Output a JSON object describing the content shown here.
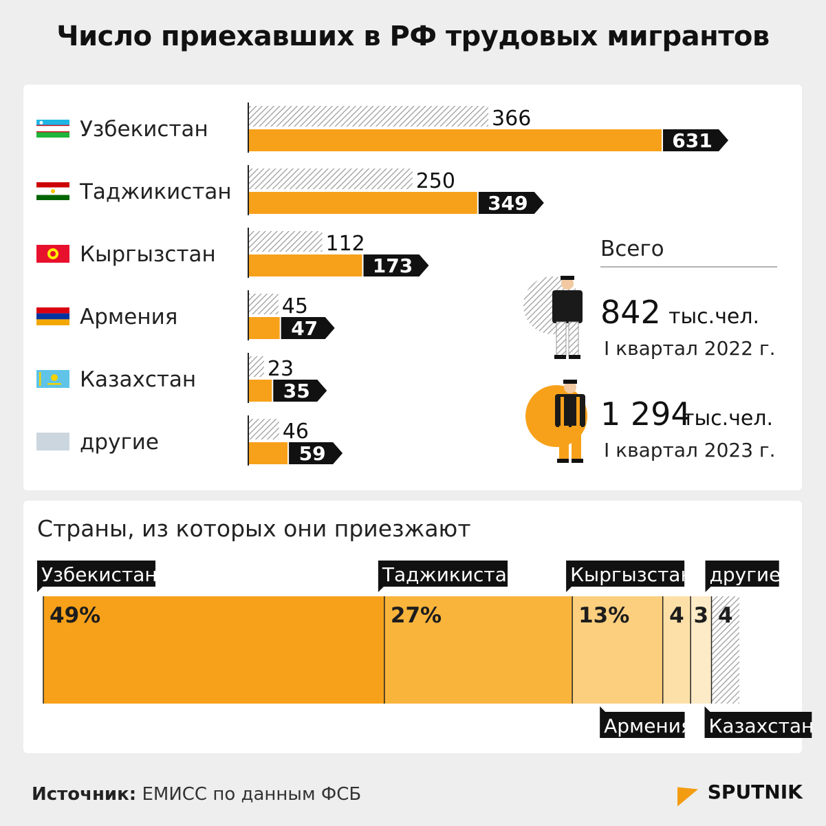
{
  "title": "Число приехавших в РФ трудовых мигрантов",
  "chart_data": [
    {
      "type": "bar",
      "orientation": "horizontal",
      "categories": [
        "Узбекистан",
        "Таджикистан",
        "Кыргызстан",
        "Армения",
        "Казахстан",
        "другие"
      ],
      "series": [
        {
          "values": [
            366,
            250,
            112,
            45,
            23,
            46
          ],
          "color": "#aaaaaa",
          "style": "hatched"
        },
        {
          "values": [
            631,
            349,
            173,
            47,
            35,
            59
          ],
          "color": "#f7a11a",
          "style": "solid"
        }
      ],
      "flags": [
        "uzbekistan-flag-icon",
        "tajikistan-flag-icon",
        "kyrgyzstan-flag-icon",
        "armenia-flag-icon",
        "kazakhstan-flag-icon",
        "others-placeholder-icon"
      ],
      "totals": {
        "label": "Всего",
        "items": [
          {
            "value": "842",
            "unit": "тыс.чел.",
            "period": "I квартал 2022 г.",
            "icon": "migrant-worker-gray-icon"
          },
          {
            "value": "1 294",
            "unit": "тыс.чел.",
            "period": "I квартал 2023 г.",
            "icon": "migrant-worker-orange-icon"
          }
        ]
      }
    },
    {
      "type": "bar",
      "orientation": "stacked-100",
      "title": "Страны, из которых они приезжают",
      "segments": [
        {
          "name": "Узбекистан",
          "value": 49,
          "label": "49%",
          "color": "#f7a11a"
        },
        {
          "name": "Таджикистан",
          "value": 27,
          "label": "27%",
          "color": "#f9b43c"
        },
        {
          "name": "Кыргызстан",
          "value": 13,
          "label": "13%",
          "color": "#fbcf7e"
        },
        {
          "name": "Армения",
          "value": 4,
          "label": "4",
          "color": "#fde0a8"
        },
        {
          "name": "Казахстан",
          "value": 3,
          "label": "3",
          "color": "#fdebc7"
        },
        {
          "name": "другие",
          "value": 4,
          "label": "4",
          "color": "#aaaaaa",
          "style": "hatched"
        }
      ]
    }
  ],
  "footer": {
    "source_label": "Источник:",
    "source_text": "ЕМИСС по данным ФСБ"
  },
  "brand": {
    "name": "SPUTNIK",
    "color": "#f39c12"
  }
}
